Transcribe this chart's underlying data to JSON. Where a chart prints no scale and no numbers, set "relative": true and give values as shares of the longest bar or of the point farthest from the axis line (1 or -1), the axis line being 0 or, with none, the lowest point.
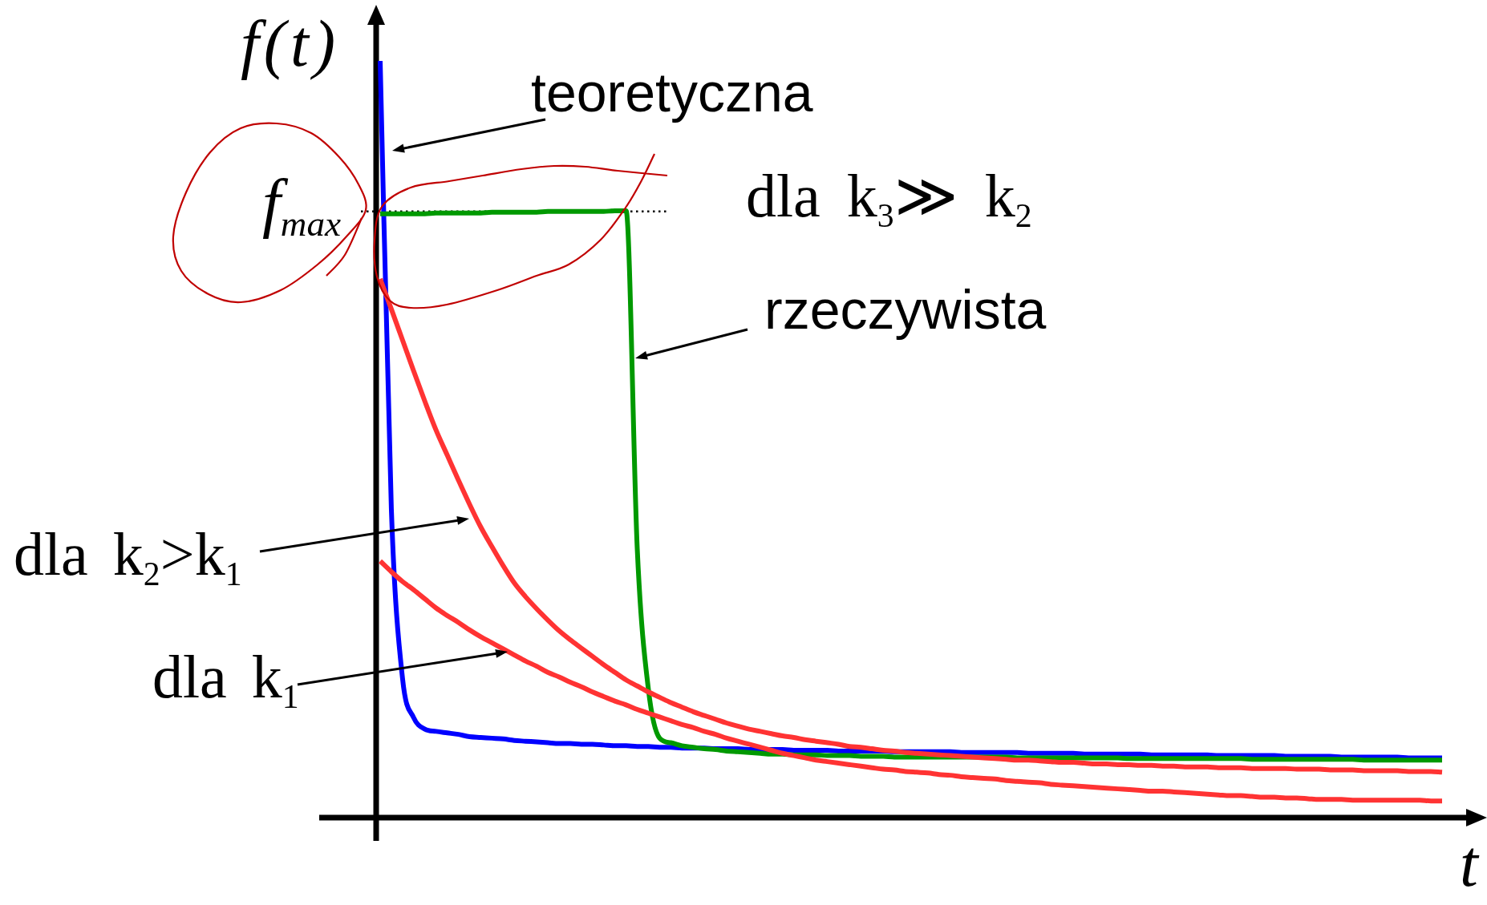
{
  "chart_data": {
    "type": "line",
    "relative": true,
    "ylabel": "f(t)",
    "xlabel": "t",
    "categories": [
      null,
      null,
      null,
      null,
      null,
      null,
      null,
      null,
      null,
      null,
      null,
      null,
      null,
      null,
      null,
      null,
      null,
      null,
      null,
      null,
      null,
      null,
      null,
      null,
      null,
      null,
      null,
      null,
      null,
      null,
      null,
      null,
      null,
      null,
      null,
      null,
      null,
      null,
      null,
      null,
      null,
      null,
      null,
      null,
      null,
      null,
      null,
      null,
      null,
      null,
      null,
      null,
      null,
      null,
      null,
      null,
      null,
      null,
      null,
      null,
      null,
      null,
      null,
      null,
      null,
      null,
      null,
      null,
      null,
      null,
      null,
      null,
      null,
      null,
      null,
      null,
      null,
      null,
      null,
      null,
      null,
      null,
      null,
      null,
      null,
      null,
      null,
      null,
      null,
      null,
      null,
      null,
      null,
      null,
      null,
      null
    ],
    "series": [
      {
        "color": "#0000ff",
        "values": [
          1,
          0.408,
          0.184,
          0.132,
          0.117,
          0.114,
          0.112,
          0.11,
          0.107,
          0.106,
          0.105,
          0.104,
          0.102,
          0.101,
          0.1,
          0.099,
          0.098,
          0.098,
          0.097,
          0.097,
          0.096,
          0.095,
          0.095,
          0.094,
          0.094,
          0.093,
          0.093,
          0.092,
          0.092,
          0.092,
          0.091,
          0.091,
          0.091,
          0.09,
          0.09,
          0.09,
          0.09,
          0.089,
          0.089,
          0.089,
          0.089,
          0.088,
          0.088,
          0.088,
          0.088,
          0.088,
          0.087,
          0.087,
          0.087,
          0.087,
          0.087,
          0.087,
          0.086,
          0.086,
          0.086,
          0.086,
          0.086,
          0.086,
          0.085,
          0.085,
          0.085,
          0.085,
          0.085,
          0.084,
          0.084,
          0.084,
          0.084,
          0.084,
          0.084,
          0.083,
          0.083,
          0.083,
          0.083,
          0.083,
          0.083,
          0.082,
          0.082,
          0.082,
          0.082,
          0.082,
          0.082,
          0.081,
          0.081,
          0.081,
          0.081,
          0.081,
          0.08,
          0.08,
          0.08,
          0.08,
          0.08,
          0.08,
          0.079,
          0.079,
          0.079,
          0.079
        ]
      },
      {
        "color": "#009900",
        "values": [
          0.798,
          0.798,
          0.798,
          0.798,
          0.798,
          0.799,
          0.799,
          0.799,
          0.799,
          0.799,
          0.8,
          0.8,
          0.8,
          0.8,
          0.8,
          0.801,
          0.801,
          0.801,
          0.801,
          0.801,
          0.801,
          0.802,
          0.802,
          0.355,
          0.169,
          0.105,
          0.099,
          0.095,
          0.093,
          0.091,
          0.09,
          0.088,
          0.087,
          0.086,
          0.085,
          0.084,
          0.084,
          0.083,
          0.083,
          0.083,
          0.082,
          0.082,
          0.082,
          0.081,
          0.081,
          0.081,
          0.08,
          0.08,
          0.08,
          0.08,
          0.08,
          0.08,
          0.08,
          0.08,
          0.08,
          0.08,
          0.08,
          0.079,
          0.079,
          0.079,
          0.079,
          0.079,
          0.079,
          0.079,
          0.079,
          0.079,
          0.079,
          0.078,
          0.078,
          0.078,
          0.078,
          0.078,
          0.078,
          0.078,
          0.078,
          0.078,
          0.078,
          0.078,
          0.077,
          0.077,
          0.077,
          0.077,
          0.077,
          0.077,
          0.077,
          0.077,
          0.077,
          0.077,
          0.076,
          0.076,
          0.076,
          0.076,
          0.076,
          0.076,
          0.076,
          0.076
        ]
      },
      {
        "color": "#ff3333",
        "values": [
          0.712,
          0.672,
          0.631,
          0.59,
          0.55,
          0.512,
          0.479,
          0.446,
          0.414,
          0.384,
          0.358,
          0.333,
          0.31,
          0.292,
          0.276,
          0.261,
          0.247,
          0.235,
          0.224,
          0.213,
          0.202,
          0.192,
          0.182,
          0.174,
          0.166,
          0.159,
          0.152,
          0.146,
          0.14,
          0.135,
          0.13,
          0.125,
          0.121,
          0.117,
          0.114,
          0.111,
          0.108,
          0.106,
          0.103,
          0.101,
          0.099,
          0.097,
          0.094,
          0.093,
          0.091,
          0.089,
          0.088,
          0.086,
          0.085,
          0.084,
          0.083,
          0.082,
          0.081,
          0.08,
          0.079,
          0.078,
          0.077,
          0.076,
          0.076,
          0.075,
          0.074,
          0.073,
          0.073,
          0.072,
          0.071,
          0.071,
          0.07,
          0.07,
          0.069,
          0.069,
          0.068,
          0.068,
          0.067,
          0.067,
          0.067,
          0.066,
          0.066,
          0.066,
          0.065,
          0.065,
          0.065,
          0.065,
          0.064,
          0.064,
          0.064,
          0.063,
          0.063,
          0.063,
          0.062,
          0.062,
          0.062,
          0.062,
          0.061,
          0.061,
          0.061,
          0.06
        ]
      },
      {
        "color": "#ff3333",
        "values": [
          0.339,
          0.325,
          0.312,
          0.301,
          0.289,
          0.277,
          0.267,
          0.258,
          0.248,
          0.239,
          0.231,
          0.223,
          0.215,
          0.207,
          0.2,
          0.192,
          0.186,
          0.179,
          0.173,
          0.166,
          0.16,
          0.154,
          0.149,
          0.143,
          0.138,
          0.133,
          0.128,
          0.123,
          0.119,
          0.114,
          0.11,
          0.105,
          0.101,
          0.097,
          0.093,
          0.089,
          0.085,
          0.082,
          0.079,
          0.076,
          0.074,
          0.072,
          0.07,
          0.068,
          0.066,
          0.064,
          0.063,
          0.061,
          0.06,
          0.059,
          0.057,
          0.056,
          0.054,
          0.053,
          0.052,
          0.051,
          0.049,
          0.048,
          0.047,
          0.046,
          0.044,
          0.043,
          0.042,
          0.041,
          0.04,
          0.039,
          0.038,
          0.037,
          0.036,
          0.035,
          0.035,
          0.034,
          0.033,
          0.032,
          0.031,
          0.03,
          0.029,
          0.029,
          0.028,
          0.027,
          0.027,
          0.026,
          0.026,
          0.025,
          0.024,
          0.024,
          0.024,
          0.023,
          0.023,
          0.023,
          0.023,
          0.023,
          0.023,
          0.023,
          0.022,
          0.022
        ]
      }
    ],
    "annotations": [
      "teoretyczna",
      "rzeczywista",
      "dla k$_{2}$>k$_{1}$",
      "dla k$_{1}$",
      "dla k$_{3}$≫ k$_{2}$"
    ],
    "ref_lines": [
      {
        "axis": "y",
        "value": 0.801,
        "label": "f$_{max}$",
        "line_style": "dotted",
        "color": "#000000"
      }
    ],
    "legend": false,
    "marker": "none",
    "line_style": "solid",
    "tick_labels": false
  }
}
